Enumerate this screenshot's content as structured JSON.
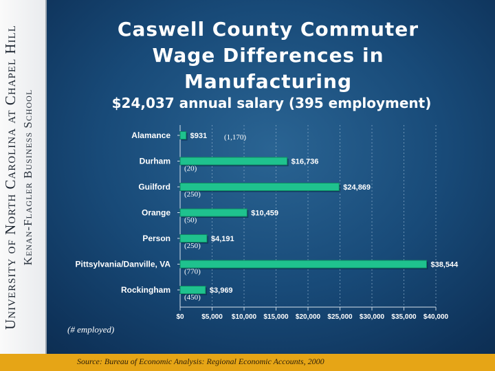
{
  "slide": {
    "title": "Caswell County Commuter Wage Differences in Manufacturing",
    "subtitle": "$24,037 annual salary (395 employment)",
    "note": "(# employed)",
    "source": "Source: Bureau of Economic Analysis: Regional Economic Accounts, 2000",
    "sidebar_line1": "University of North Carolina at Chapel Hill",
    "sidebar_line2": "Kenan-Flagler Business School"
  },
  "colors": {
    "bar": "#1fc28e",
    "bar_edge": "#0f8a62",
    "accent_bar": "#e6a516"
  },
  "chart_data": {
    "type": "bar",
    "orientation": "horizontal",
    "title": "Caswell County Commuter Wage Differences in Manufacturing",
    "categories": [
      "Alamance",
      "Durham",
      "Guilford",
      "Orange",
      "Person",
      "Pittsylvania/Danville, VA",
      "Rockingham"
    ],
    "values": [
      931,
      16736,
      24869,
      10459,
      4191,
      38544,
      3969
    ],
    "value_labels": [
      "$931",
      "$16,736",
      "$24,869",
      "$10,459",
      "$4,191",
      "$38,544",
      "$3,969"
    ],
    "employment_labels": [
      "(1,170)",
      "(20)",
      "(250)",
      "(50)",
      "(250)",
      "(770)",
      "(450)"
    ],
    "xlim": [
      0,
      40000
    ],
    "x_ticks": [
      0,
      5000,
      10000,
      15000,
      20000,
      25000,
      30000,
      35000,
      40000
    ],
    "x_tick_labels": [
      "$0",
      "$5,000",
      "$10,000",
      "$15,000",
      "$20,000",
      "$25,000",
      "$30,000",
      "$35,000",
      "$40,000"
    ],
    "xlabel": "",
    "ylabel": "",
    "grid": true
  }
}
